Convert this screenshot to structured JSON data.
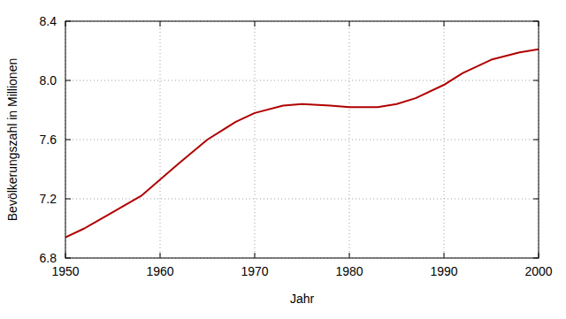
{
  "chart_data": {
    "type": "line",
    "x_label": "Jahr",
    "y_label": "Bevölkerungszahl in Millionen",
    "x": [
      1950,
      1952,
      1955,
      1958,
      1960,
      1962,
      1965,
      1968,
      1970,
      1973,
      1975,
      1978,
      1980,
      1983,
      1985,
      1987,
      1990,
      1992,
      1995,
      1998,
      2000
    ],
    "series": [
      {
        "name": "Bevölkerungszahl",
        "color": "#b00000",
        "values": [
          6.94,
          7.0,
          7.11,
          7.22,
          7.33,
          7.44,
          7.6,
          7.72,
          7.78,
          7.83,
          7.84,
          7.83,
          7.82,
          7.82,
          7.84,
          7.88,
          7.97,
          8.05,
          8.14,
          8.19,
          8.21
        ]
      }
    ],
    "xlim": [
      1950,
      2000
    ],
    "ylim": [
      6.8,
      8.4
    ],
    "xticks": [
      1950,
      1960,
      1970,
      1980,
      1990,
      2000
    ],
    "yticks": [
      6.8,
      7.2,
      7.6,
      {
        "value": 8,
        "label": "8.0"
      },
      8.4
    ],
    "grid": true
  }
}
